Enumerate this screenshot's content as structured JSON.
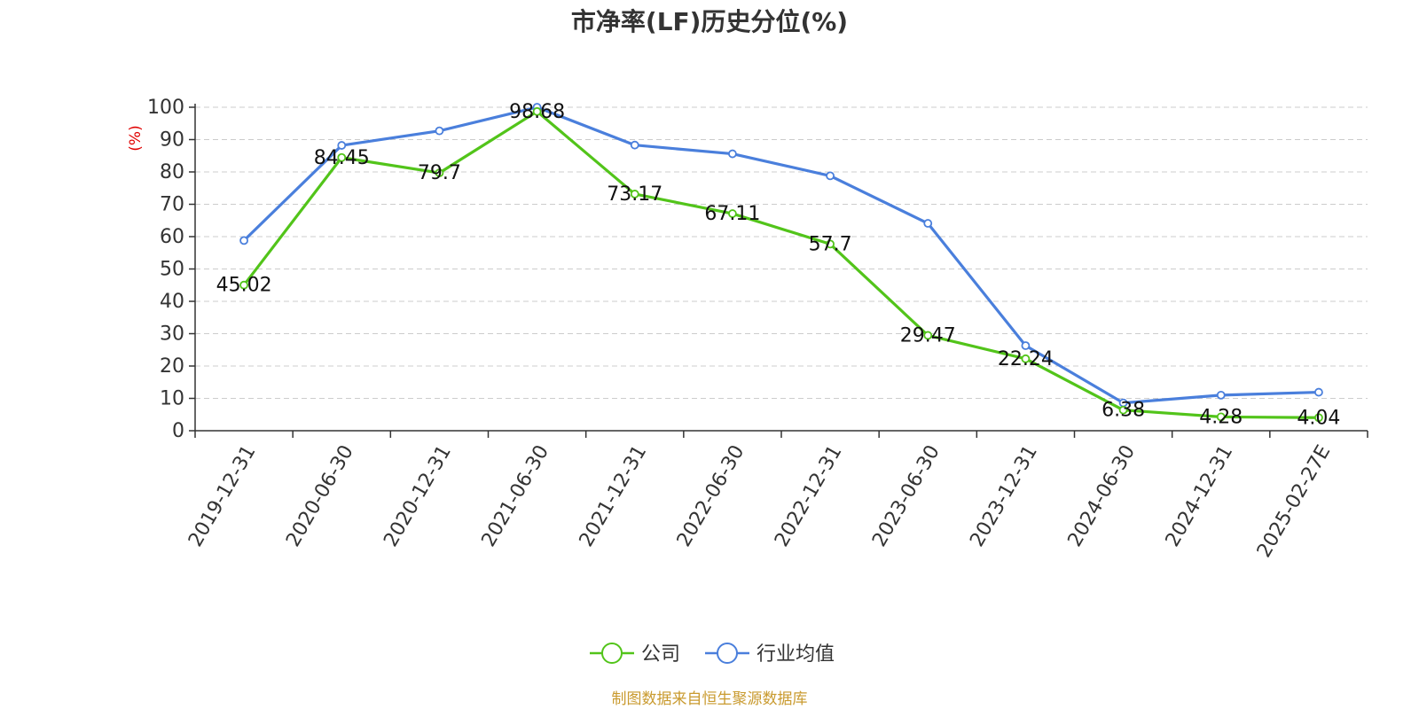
{
  "chart_data": {
    "type": "line",
    "title": "市净率(LF)历史分位(%)",
    "ylabel": "(%)",
    "xlabel": "",
    "ylim": [
      0,
      100
    ],
    "yticks": [
      0,
      10,
      20,
      30,
      40,
      50,
      60,
      70,
      80,
      90,
      100
    ],
    "grid": true,
    "legend_position": "bottom",
    "categories": [
      "2019-12-31",
      "2020-06-30",
      "2020-12-31",
      "2021-06-30",
      "2021-12-31",
      "2022-06-30",
      "2022-12-31",
      "2023-06-30",
      "2023-12-31",
      "2024-06-30",
      "2024-12-31",
      "2025-02-27E"
    ],
    "series": [
      {
        "name": "公司",
        "color": "#52c41a",
        "values": [
          45.02,
          84.45,
          79.7,
          98.68,
          73.17,
          67.11,
          57.7,
          29.47,
          22.24,
          6.38,
          4.28,
          4.04
        ],
        "labels": [
          "45.02",
          "84.45",
          "79.7",
          "98.68",
          "73.17",
          "67.11",
          "57.7",
          "29.47",
          "22.24",
          "6.38",
          "4.28",
          "4.04"
        ]
      },
      {
        "name": "行业均值",
        "color": "#4a7fdc",
        "values": [
          58.8,
          88.2,
          92.7,
          100,
          88.3,
          85.6,
          78.8,
          64.1,
          26.3,
          8.6,
          11.0,
          11.9
        ]
      }
    ]
  },
  "source_text": "制图数据来自恒生聚源数据库",
  "colors": {
    "ylabel": "#e00000",
    "source": "#c99a2e"
  }
}
